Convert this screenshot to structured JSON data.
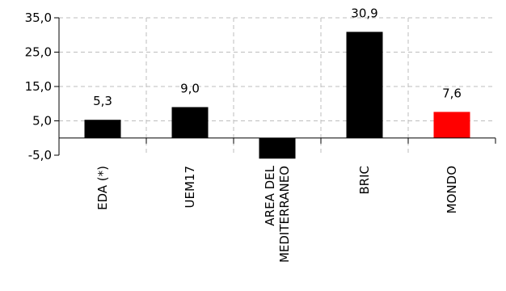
{
  "chart_data": {
    "type": "bar",
    "categories": [
      "EDA (*)",
      "UEM17",
      "AREA DEL MEDITERRANEO",
      "BRIC",
      "MONDO"
    ],
    "category_lines": [
      [
        "EDA (*)"
      ],
      [
        "UEM17"
      ],
      [
        "AREA DEL",
        "MEDITERRANEO"
      ],
      [
        "BRIC"
      ],
      [
        "MONDO"
      ]
    ],
    "values": [
      5.3,
      9.0,
      -6.0,
      30.9,
      7.6
    ],
    "data_labels": [
      "5,3",
      "9,0",
      "",
      "30,9",
      "7,6"
    ],
    "colors": [
      "#000000",
      "#000000",
      "#000000",
      "#000000",
      "#ff0000"
    ],
    "yticks": [
      -5,
      5,
      15,
      25,
      35
    ],
    "ytick_labels": [
      "-5,0",
      "5,0",
      "15,0",
      "25,0",
      "35,0"
    ],
    "ylim": [
      -5,
      35
    ],
    "grid": "dashed-both",
    "title": "",
    "xlabel": "",
    "ylabel": ""
  }
}
